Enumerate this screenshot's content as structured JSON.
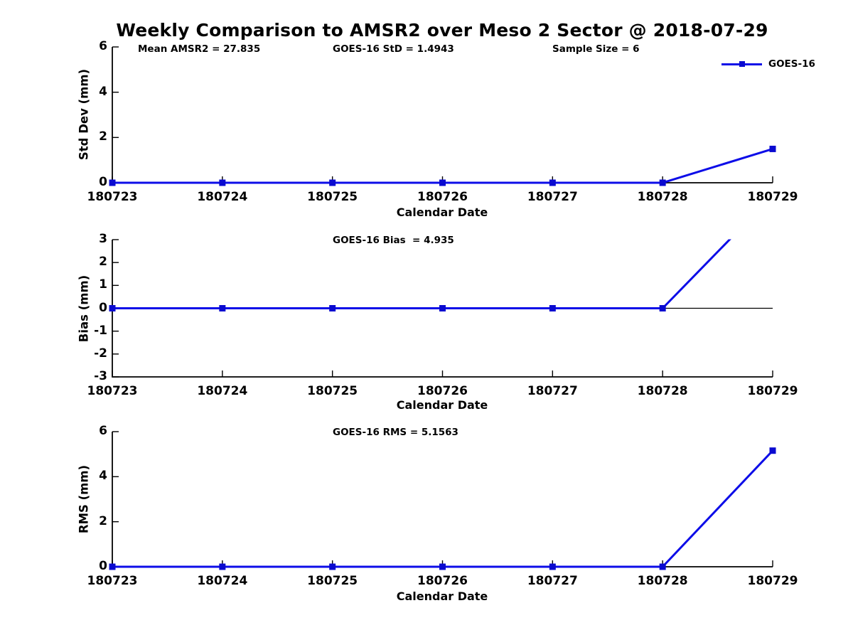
{
  "title": "Weekly Comparison to AMSR2 over Meso 2 Sector @ 2018-07-29",
  "colors": {
    "line": "#0d0de8",
    "marker": "#0a0ad0",
    "axis": "#000000",
    "text": "#000000",
    "background": "#ffffff"
  },
  "legend": {
    "label": "GOES-16",
    "position": "top-right"
  },
  "chart_data": [
    {
      "type": "line",
      "name": "std-dev",
      "ylabel": "Std Dev (mm)",
      "xlabel": "Calendar Date",
      "categories": [
        "180723",
        "180724",
        "180725",
        "180726",
        "180727",
        "180728",
        "180729"
      ],
      "series": [
        {
          "name": "GOES-16",
          "values": [
            0,
            0,
            0,
            0,
            0,
            0,
            1.4943
          ]
        }
      ],
      "ylim": [
        0,
        6
      ],
      "yticks": [
        0,
        2,
        4,
        6
      ],
      "zero_line": false,
      "grid": false,
      "marker": "square",
      "annotations": [
        "Mean AMSR2 = 27.835",
        "GOES-16 StD = 1.4943",
        "Sample Size = 6"
      ]
    },
    {
      "type": "line",
      "name": "bias",
      "ylabel": "Bias (mm)",
      "xlabel": "Calendar Date",
      "categories": [
        "180723",
        "180724",
        "180725",
        "180726",
        "180727",
        "180728",
        "180729"
      ],
      "series": [
        {
          "name": "GOES-16",
          "values": [
            0,
            0,
            0,
            0,
            0,
            0,
            4.935
          ]
        }
      ],
      "ylim": [
        -3,
        3
      ],
      "yticks": [
        3,
        2,
        1,
        0,
        -1,
        -2,
        -3
      ],
      "zero_line": true,
      "grid": false,
      "marker": "square",
      "annotations": [
        "GOES-16 Bias  = 4.935"
      ]
    },
    {
      "type": "line",
      "name": "rms",
      "ylabel": "RMS (mm)",
      "xlabel": "Calendar Date",
      "categories": [
        "180723",
        "180724",
        "180725",
        "180726",
        "180727",
        "180728",
        "180729"
      ],
      "series": [
        {
          "name": "GOES-16",
          "values": [
            0,
            0,
            0,
            0,
            0,
            0,
            5.1563
          ]
        }
      ],
      "ylim": [
        0,
        6
      ],
      "yticks": [
        0,
        2,
        4,
        6
      ],
      "zero_line": false,
      "grid": false,
      "marker": "square",
      "annotations": [
        "GOES-16 RMS = 5.1563"
      ]
    }
  ]
}
